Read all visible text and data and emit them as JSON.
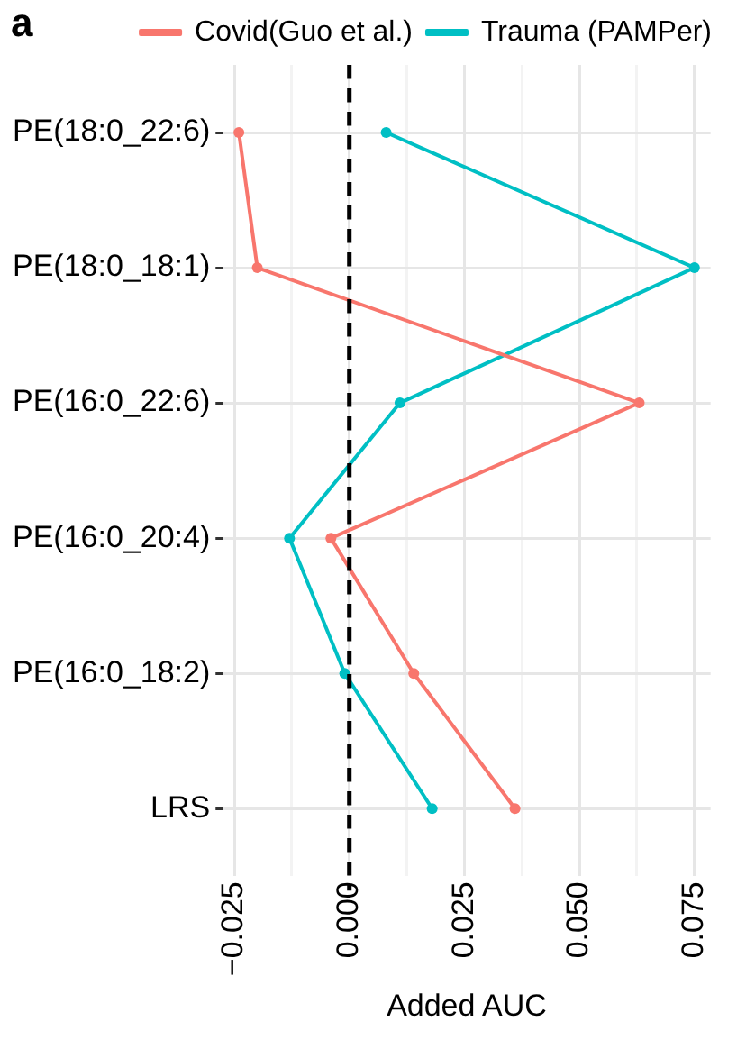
{
  "chart_data": {
    "type": "line",
    "orientation": "horizontal",
    "title": "a",
    "xlabel": "Added AUC",
    "categories": [
      "PE(18:0_22:6)",
      "PE(18:0_18:1)",
      "PE(16:0_22:6)",
      "PE(16:0_20:4)",
      "PE(16:0_18:2)",
      "LRS"
    ],
    "series": [
      {
        "name": "Covid(Guo et al.)",
        "color": "#f8766d",
        "values": [
          -0.024,
          -0.02,
          0.063,
          -0.004,
          0.014,
          0.036
        ]
      },
      {
        "name": "Trauma (PAMPer)",
        "color": "#00bfc4",
        "values": [
          0.008,
          0.075,
          0.011,
          -0.013,
          -0.001,
          0.018
        ]
      }
    ],
    "xlim": [
      -0.0275,
      0.0785
    ],
    "xticks": [
      {
        "value": -0.025,
        "label": "−0.025"
      },
      {
        "value": -0.0125,
        "label": null
      },
      {
        "value": 0,
        "label": "0.000"
      },
      {
        "value": 0.0125,
        "label": null
      },
      {
        "value": 0.025,
        "label": "0.025"
      },
      {
        "value": 0.0375,
        "label": null
      },
      {
        "value": 0.05,
        "label": "0.050"
      },
      {
        "value": 0.0625,
        "label": null
      },
      {
        "value": 0.075,
        "label": "0.075"
      }
    ],
    "ref_lines": [
      {
        "axis": "x",
        "value": 0,
        "color": "#000000",
        "line_style": "dashed"
      }
    ],
    "grid": true,
    "legend": "top",
    "marker": "circle",
    "line_style": "solid"
  }
}
